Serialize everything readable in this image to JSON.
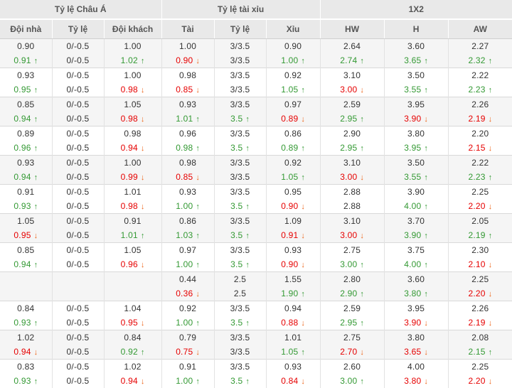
{
  "header": {
    "groups": [
      {
        "label": "Tỷ lệ Châu Á"
      },
      {
        "label": "Tỷ lệ tài xỉu"
      },
      {
        "label": "1X2"
      }
    ],
    "columns": [
      "Đội nhà",
      "Tỷ lệ",
      "Đội khách",
      "Tài",
      "Tỷ lệ",
      "Xỉu",
      "HW",
      "H",
      "AW"
    ]
  },
  "colors": {
    "up_green": "#339933",
    "down_red": "#e60000",
    "down_arrow_orange": "#ed6316",
    "header_bg": "#e9e9e9",
    "shade_bg": "#f5f5f5"
  },
  "rows": [
    {
      "shade": true,
      "lines": [
        [
          {
            "v": "0.90"
          },
          {
            "v": "0/-0.5"
          },
          {
            "v": "1.00"
          },
          {
            "v": "1.00"
          },
          {
            "v": "3/3.5"
          },
          {
            "v": "0.90"
          },
          {
            "v": "2.64"
          },
          {
            "v": "3.60"
          },
          {
            "v": "2.27"
          }
        ],
        [
          {
            "v": "0.91",
            "t": "up"
          },
          {
            "v": "0/-0.5"
          },
          {
            "v": "1.02",
            "t": "up"
          },
          {
            "v": "0.90",
            "t": "down"
          },
          {
            "v": "3/3.5"
          },
          {
            "v": "1.00",
            "t": "up"
          },
          {
            "v": "2.74",
            "t": "up"
          },
          {
            "v": "3.65",
            "t": "up"
          },
          {
            "v": "2.32",
            "t": "up"
          }
        ]
      ]
    },
    {
      "shade": false,
      "lines": [
        [
          {
            "v": "0.93"
          },
          {
            "v": "0/-0.5"
          },
          {
            "v": "1.00"
          },
          {
            "v": "0.98"
          },
          {
            "v": "3/3.5"
          },
          {
            "v": "0.92"
          },
          {
            "v": "3.10"
          },
          {
            "v": "3.50"
          },
          {
            "v": "2.22"
          }
        ],
        [
          {
            "v": "0.95",
            "t": "up"
          },
          {
            "v": "0/-0.5"
          },
          {
            "v": "0.98",
            "t": "down"
          },
          {
            "v": "0.85",
            "t": "down"
          },
          {
            "v": "3/3.5"
          },
          {
            "v": "1.05",
            "t": "up"
          },
          {
            "v": "3.00",
            "t": "down"
          },
          {
            "v": "3.55",
            "t": "up"
          },
          {
            "v": "2.23",
            "t": "up"
          }
        ]
      ]
    },
    {
      "shade": true,
      "lines": [
        [
          {
            "v": "0.85"
          },
          {
            "v": "0/-0.5"
          },
          {
            "v": "1.05"
          },
          {
            "v": "0.93"
          },
          {
            "v": "3/3.5"
          },
          {
            "v": "0.97"
          },
          {
            "v": "2.59"
          },
          {
            "v": "3.95"
          },
          {
            "v": "2.26"
          }
        ],
        [
          {
            "v": "0.94",
            "t": "up"
          },
          {
            "v": "0/-0.5"
          },
          {
            "v": "0.98",
            "t": "down"
          },
          {
            "v": "1.01",
            "t": "up"
          },
          {
            "v": "3.5",
            "t": "up"
          },
          {
            "v": "0.89",
            "t": "down"
          },
          {
            "v": "2.95",
            "t": "up"
          },
          {
            "v": "3.90",
            "t": "down"
          },
          {
            "v": "2.19",
            "t": "down"
          }
        ]
      ]
    },
    {
      "shade": false,
      "lines": [
        [
          {
            "v": "0.89"
          },
          {
            "v": "0/-0.5"
          },
          {
            "v": "0.98"
          },
          {
            "v": "0.96"
          },
          {
            "v": "3/3.5"
          },
          {
            "v": "0.86"
          },
          {
            "v": "2.90"
          },
          {
            "v": "3.80"
          },
          {
            "v": "2.20"
          }
        ],
        [
          {
            "v": "0.96",
            "t": "up"
          },
          {
            "v": "0/-0.5"
          },
          {
            "v": "0.94",
            "t": "down"
          },
          {
            "v": "0.98",
            "t": "up"
          },
          {
            "v": "3.5",
            "t": "up"
          },
          {
            "v": "0.89",
            "t": "up"
          },
          {
            "v": "2.95",
            "t": "up"
          },
          {
            "v": "3.95",
            "t": "up"
          },
          {
            "v": "2.15",
            "t": "down"
          }
        ]
      ]
    },
    {
      "shade": true,
      "lines": [
        [
          {
            "v": "0.93"
          },
          {
            "v": "0/-0.5"
          },
          {
            "v": "1.00"
          },
          {
            "v": "0.98"
          },
          {
            "v": "3/3.5"
          },
          {
            "v": "0.92"
          },
          {
            "v": "3.10"
          },
          {
            "v": "3.50"
          },
          {
            "v": "2.22"
          }
        ],
        [
          {
            "v": "0.94",
            "t": "up"
          },
          {
            "v": "0/-0.5"
          },
          {
            "v": "0.99",
            "t": "down"
          },
          {
            "v": "0.85",
            "t": "down"
          },
          {
            "v": "3/3.5"
          },
          {
            "v": "1.05",
            "t": "up"
          },
          {
            "v": "3.00",
            "t": "down"
          },
          {
            "v": "3.55",
            "t": "up"
          },
          {
            "v": "2.23",
            "t": "up"
          }
        ]
      ]
    },
    {
      "shade": false,
      "lines": [
        [
          {
            "v": "0.91"
          },
          {
            "v": "0/-0.5"
          },
          {
            "v": "1.01"
          },
          {
            "v": "0.93"
          },
          {
            "v": "3/3.5"
          },
          {
            "v": "0.95"
          },
          {
            "v": "2.88"
          },
          {
            "v": "3.90"
          },
          {
            "v": "2.25"
          }
        ],
        [
          {
            "v": "0.93",
            "t": "up"
          },
          {
            "v": "0/-0.5"
          },
          {
            "v": "0.98",
            "t": "down"
          },
          {
            "v": "1.00",
            "t": "up"
          },
          {
            "v": "3.5",
            "t": "up"
          },
          {
            "v": "0.90",
            "t": "down"
          },
          {
            "v": "2.88"
          },
          {
            "v": "4.00",
            "t": "up"
          },
          {
            "v": "2.20",
            "t": "down"
          }
        ]
      ]
    },
    {
      "shade": true,
      "lines": [
        [
          {
            "v": "1.05"
          },
          {
            "v": "0/-0.5"
          },
          {
            "v": "0.91"
          },
          {
            "v": "0.86"
          },
          {
            "v": "3/3.5"
          },
          {
            "v": "1.09"
          },
          {
            "v": "3.10"
          },
          {
            "v": "3.70"
          },
          {
            "v": "2.05"
          }
        ],
        [
          {
            "v": "0.95",
            "t": "down"
          },
          {
            "v": "0/-0.5"
          },
          {
            "v": "1.01",
            "t": "up"
          },
          {
            "v": "1.03",
            "t": "up"
          },
          {
            "v": "3.5",
            "t": "up"
          },
          {
            "v": "0.91",
            "t": "down"
          },
          {
            "v": "3.00",
            "t": "down"
          },
          {
            "v": "3.90",
            "t": "up"
          },
          {
            "v": "2.19",
            "t": "up"
          }
        ]
      ]
    },
    {
      "shade": false,
      "lines": [
        [
          {
            "v": "0.85"
          },
          {
            "v": "0/-0.5"
          },
          {
            "v": "1.05"
          },
          {
            "v": "0.97"
          },
          {
            "v": "3/3.5"
          },
          {
            "v": "0.93"
          },
          {
            "v": "2.75"
          },
          {
            "v": "3.75"
          },
          {
            "v": "2.30"
          }
        ],
        [
          {
            "v": "0.94",
            "t": "up"
          },
          {
            "v": "0/-0.5"
          },
          {
            "v": "0.96",
            "t": "down"
          },
          {
            "v": "1.00",
            "t": "up"
          },
          {
            "v": "3.5",
            "t": "up"
          },
          {
            "v": "0.90",
            "t": "down"
          },
          {
            "v": "3.00",
            "t": "up"
          },
          {
            "v": "4.00",
            "t": "up"
          },
          {
            "v": "2.10",
            "t": "down"
          }
        ]
      ]
    },
    {
      "shade": true,
      "lines": [
        [
          {
            "v": ""
          },
          {
            "v": ""
          },
          {
            "v": ""
          },
          {
            "v": "0.44"
          },
          {
            "v": "2.5"
          },
          {
            "v": "1.55"
          },
          {
            "v": "2.80"
          },
          {
            "v": "3.60"
          },
          {
            "v": "2.25"
          }
        ],
        [
          {
            "v": ""
          },
          {
            "v": ""
          },
          {
            "v": ""
          },
          {
            "v": "0.36",
            "t": "down"
          },
          {
            "v": "2.5"
          },
          {
            "v": "1.90",
            "t": "up"
          },
          {
            "v": "2.90",
            "t": "up"
          },
          {
            "v": "3.80",
            "t": "up"
          },
          {
            "v": "2.20",
            "t": "down"
          }
        ]
      ]
    },
    {
      "shade": false,
      "lines": [
        [
          {
            "v": "0.84"
          },
          {
            "v": "0/-0.5"
          },
          {
            "v": "1.04"
          },
          {
            "v": "0.92"
          },
          {
            "v": "3/3.5"
          },
          {
            "v": "0.94"
          },
          {
            "v": "2.59"
          },
          {
            "v": "3.95"
          },
          {
            "v": "2.26"
          }
        ],
        [
          {
            "v": "0.93",
            "t": "up"
          },
          {
            "v": "0/-0.5"
          },
          {
            "v": "0.95",
            "t": "down"
          },
          {
            "v": "1.00",
            "t": "up"
          },
          {
            "v": "3.5",
            "t": "up"
          },
          {
            "v": "0.88",
            "t": "down"
          },
          {
            "v": "2.95",
            "t": "up"
          },
          {
            "v": "3.90",
            "t": "down"
          },
          {
            "v": "2.19",
            "t": "down"
          }
        ]
      ]
    },
    {
      "shade": true,
      "lines": [
        [
          {
            "v": "1.02"
          },
          {
            "v": "0/-0.5"
          },
          {
            "v": "0.84"
          },
          {
            "v": "0.79"
          },
          {
            "v": "3/3.5"
          },
          {
            "v": "1.01"
          },
          {
            "v": "2.75"
          },
          {
            "v": "3.80"
          },
          {
            "v": "2.08"
          }
        ],
        [
          {
            "v": "0.94",
            "t": "down"
          },
          {
            "v": "0/-0.5"
          },
          {
            "v": "0.92",
            "t": "up"
          },
          {
            "v": "0.75",
            "t": "down"
          },
          {
            "v": "3/3.5"
          },
          {
            "v": "1.05",
            "t": "up"
          },
          {
            "v": "2.70",
            "t": "down"
          },
          {
            "v": "3.65",
            "t": "down"
          },
          {
            "v": "2.15",
            "t": "up"
          }
        ]
      ]
    },
    {
      "shade": false,
      "lines": [
        [
          {
            "v": "0.83"
          },
          {
            "v": "0/-0.5"
          },
          {
            "v": "1.02"
          },
          {
            "v": "0.91"
          },
          {
            "v": "3/3.5"
          },
          {
            "v": "0.93"
          },
          {
            "v": "2.60"
          },
          {
            "v": "4.00"
          },
          {
            "v": "2.25"
          }
        ],
        [
          {
            "v": "0.93",
            "t": "up"
          },
          {
            "v": "0/-0.5"
          },
          {
            "v": "0.94",
            "t": "down"
          },
          {
            "v": "1.00",
            "t": "up"
          },
          {
            "v": "3.5",
            "t": "up"
          },
          {
            "v": "0.84",
            "t": "down"
          },
          {
            "v": "3.00",
            "t": "up"
          },
          {
            "v": "3.80",
            "t": "down"
          },
          {
            "v": "2.20",
            "t": "down"
          }
        ]
      ]
    }
  ]
}
